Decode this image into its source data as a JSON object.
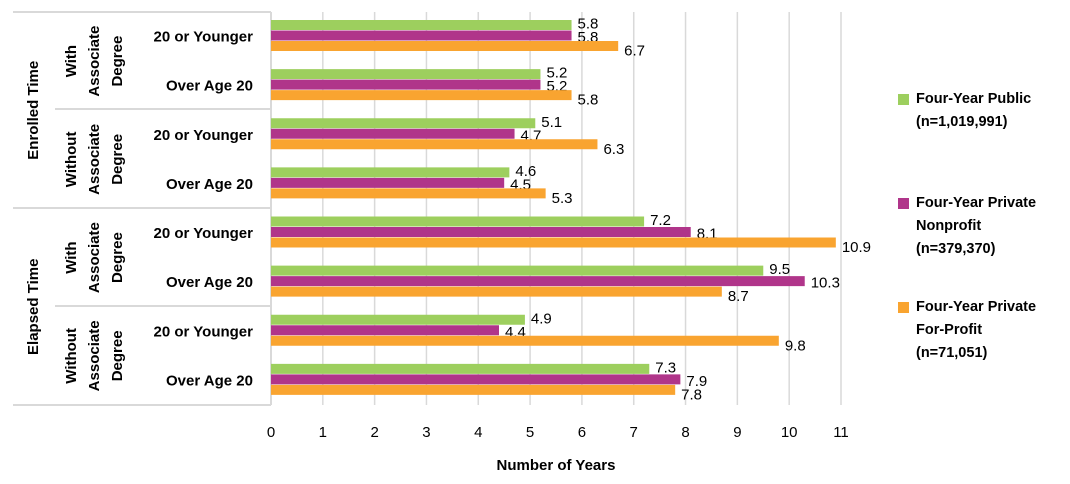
{
  "chart_data": {
    "type": "bar",
    "orientation": "horizontal",
    "xlabel": "Number of Years",
    "xlim": [
      0,
      11
    ],
    "xticks": [
      "0",
      "1",
      "2",
      "3",
      "4",
      "5",
      "6",
      "7",
      "8",
      "9",
      "10",
      "11"
    ],
    "grid": true,
    "legend_position": "right",
    "groups": [
      {
        "label": "Enrolled Time",
        "subgroups": [
          {
            "label": [
              "With",
              "Associate",
              "Degree"
            ],
            "categories": [
              "20 or Younger",
              "Over Age 20"
            ]
          },
          {
            "label": [
              "Without",
              "Associate",
              "Degree"
            ],
            "categories": [
              "20 or Younger",
              "Over Age 20"
            ]
          }
        ]
      },
      {
        "label": "Elapsed Time",
        "subgroups": [
          {
            "label": [
              "With",
              "Associate",
              "Degree"
            ],
            "categories": [
              "20 or Younger",
              "Over Age 20"
            ]
          },
          {
            "label": [
              "Without",
              "Associate",
              "Degree"
            ],
            "categories": [
              "20 or Younger",
              "Over Age 20"
            ]
          }
        ]
      }
    ],
    "series": [
      {
        "name": "Four-Year Public (n=1,019,991)",
        "legend_lines": [
          "Four-Year Public",
          "(n=1,019,991)"
        ],
        "color": "#9dcf5e",
        "values": [
          5.8,
          5.2,
          5.1,
          4.6,
          7.2,
          9.5,
          4.9,
          7.3
        ]
      },
      {
        "name": "Four-Year Private Nonprofit (n=379,370)",
        "legend_lines": [
          "Four-Year Private",
          "Nonprofit",
          "(n=379,370)"
        ],
        "color": "#b0358a",
        "values": [
          5.8,
          5.2,
          4.7,
          4.5,
          8.1,
          10.3,
          4.4,
          7.9
        ]
      },
      {
        "name": "Four-Year Private For-Profit (n=71,051)",
        "legend_lines": [
          "Four-Year Private",
          "For-Profit",
          "(n=71,051)"
        ],
        "color": "#f9a430",
        "values": [
          6.7,
          5.8,
          6.3,
          5.3,
          10.9,
          8.7,
          9.8,
          7.8
        ]
      }
    ]
  }
}
